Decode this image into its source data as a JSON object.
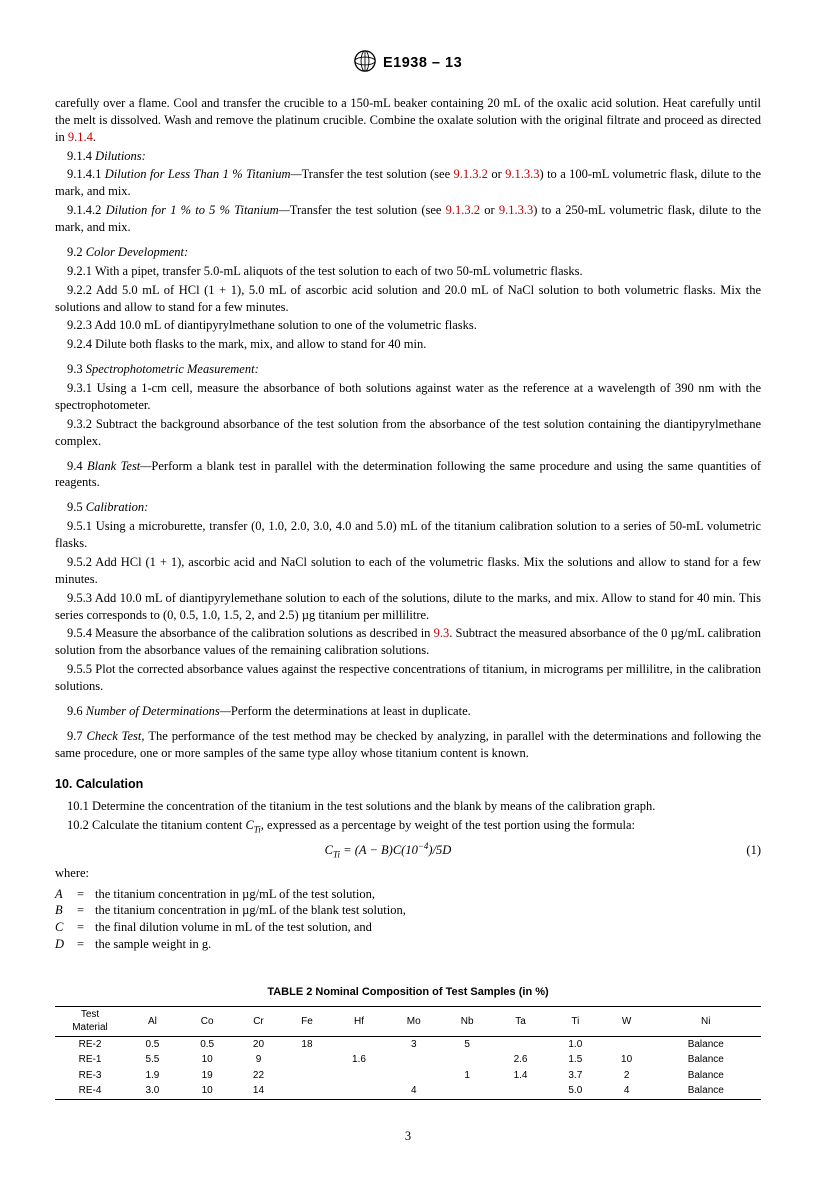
{
  "header": {
    "doc_id": "E1938 – 13"
  },
  "body": {
    "p_intro": "carefully over a flame. Cool and transfer the crucible to a 150-mL beaker containing 20 mL of the oxalic acid solution. Heat carefully until the melt is dissolved. Wash and remove the platinum crucible. Combine the oxalate solution with the original filtrate and proceed as directed in ",
    "p_intro_ref": "9.1.4",
    "p_914": "9.1.4 ",
    "p_914_it": "Dilutions:",
    "p_9141_a": "9.1.4.1 ",
    "p_9141_it": "Dilution for Less Than 1 % Titanium—",
    "p_9141_b": "Transfer the test solution (see ",
    "p_9141_ref1": "9.1.3.2",
    "p_9141_mid": " or ",
    "p_9141_ref2": "9.1.3.3",
    "p_9141_c": ") to a 100-mL volumetric flask, dilute to the mark, and mix.",
    "p_9142_a": "9.1.4.2 ",
    "p_9142_it": "Dilution for 1 % to 5 % Titanium—",
    "p_9142_b": "Transfer the test solution (see ",
    "p_9142_ref1": "9.1.3.2",
    "p_9142_mid": " or ",
    "p_9142_ref2": "9.1.3.3",
    "p_9142_c": ") to a 250-mL volumetric flask, dilute to the mark, and mix.",
    "p_92": "9.2 ",
    "p_92_it": "Color Development:",
    "p_921": "9.2.1 With a pipet, transfer 5.0-mL aliquots of the test solution to each of two 50-mL volumetric flasks.",
    "p_922": "9.2.2 Add 5.0 mL of HCl (1 + 1), 5.0 mL of ascorbic acid solution and 20.0 mL of NaCl solution to both volumetric flasks. Mix the solutions and allow to stand for a few minutes.",
    "p_923": "9.2.3 Add 10.0 mL of diantipyrylmethane solution to one of the volumetric flasks.",
    "p_924": "9.2.4 Dilute both flasks to the mark, mix, and allow to stand for 40 min.",
    "p_93": "9.3 ",
    "p_93_it": "Spectrophotometric Measurement:",
    "p_931": "9.3.1 Using a 1-cm cell, measure the absorbance of both solutions against water as the reference at a wavelength of 390 nm with the spectrophotometer.",
    "p_932": "9.3.2 Subtract the background absorbance of the test solution from the absorbance of the test solution containing the diantipyrylmethane complex.",
    "p_94a": "9.4 ",
    "p_94_it": "Blank Test—",
    "p_94b": "Perform a blank test in parallel with the determination following the same procedure and using the same quantities of reagents.",
    "p_95": "9.5 ",
    "p_95_it": "Calibration:",
    "p_951": "9.5.1 Using a microburette, transfer (0, 1.0, 2.0, 3.0, 4.0 and 5.0) mL of the titanium calibration solution to a series of 50-mL volumetric flasks.",
    "p_952": "9.5.2 Add HCl (1 + 1), ascorbic acid and NaCl solution to each of the volumetric flasks. Mix the solutions and allow to stand for a few minutes.",
    "p_953": "9.5.3 Add 10.0 mL of diantipyrylemethane solution to each of the solutions, dilute to the marks, and mix. Allow to stand for 40 min. This series corresponds to (0, 0.5, 1.0, 1.5, 2, and 2.5) µg titanium per millilitre.",
    "p_954a": "9.5.4 Measure the absorbance of the calibration solutions as described in ",
    "p_954_ref": "9.3",
    "p_954b": ". Subtract the measured absorbance of the 0 µg/mL calibration solution from the absorbance values of the remaining calibration solutions.",
    "p_955": "9.5.5 Plot the corrected absorbance values against the respective concentrations of titanium, in micrograms per millilitre, in the calibration solutions.",
    "p_96a": "9.6 ",
    "p_96_it": "Number of Determinations—",
    "p_96b": "Perform the determinations at least in duplicate.",
    "p_97a": "9.7 ",
    "p_97_it": "Check Test, ",
    "p_97b": "The performance of the test method may be checked by analyzing, in parallel with the determinations and following the same procedure, one or more samples of the same type alloy whose titanium content is known.",
    "h10": "10. Calculation",
    "p_101": "10.1 Determine the concentration of the titanium in the test solutions and the blank by means of the calibration graph.",
    "p_102a": "10.2 Calculate the titanium content ",
    "p_102b": ", expressed as a percentage by weight of the test portion using the formula:",
    "eq1_num": "(1)",
    "where": "where:",
    "def_A": "the titanium concentration in µg/mL of the test solution,",
    "def_B": "the titanium concentration in µg/mL of the blank test solution,",
    "def_C": "the final dilution volume in mL of the test solution, and",
    "def_D": "the sample weight in g."
  },
  "table2": {
    "title": "TABLE 2 Nominal Composition of Test Samples (in %)",
    "columns": [
      "Test Material",
      "Al",
      "Co",
      "Cr",
      "Fe",
      "Hf",
      "Mo",
      "Nb",
      "Ta",
      "Ti",
      "W",
      "Ni"
    ],
    "rows": [
      [
        "RE-2",
        "0.5",
        "0.5",
        "20",
        "18",
        "",
        "3",
        "5",
        "",
        "1.0",
        "",
        "Balance"
      ],
      [
        "RE-1",
        "5.5",
        "10",
        "9",
        "",
        "1.6",
        "",
        "",
        "2.6",
        "1.5",
        "10",
        "Balance"
      ],
      [
        "RE-3",
        "1.9",
        "19",
        "22",
        "",
        "",
        "",
        "1",
        "1.4",
        "3.7",
        "2",
        "Balance"
      ],
      [
        "RE-4",
        "3.0",
        "10",
        "14",
        "",
        "",
        "4",
        "",
        "",
        "5.0",
        "4",
        "Balance"
      ]
    ]
  },
  "page_num": "3"
}
